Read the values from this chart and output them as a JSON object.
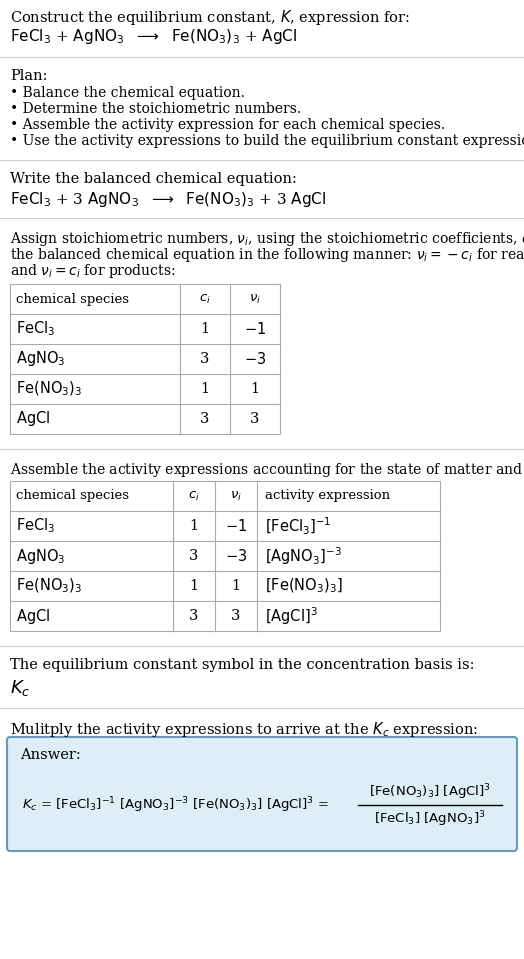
{
  "title_line1": "Construct the equilibrium constant, $K$, expression for:",
  "title_line2_plain": "FeCl",
  "plan_header": "Plan:",
  "plan_bullets": [
    "• Balance the chemical equation.",
    "• Determine the stoichiometric numbers.",
    "• Assemble the activity expression for each chemical species.",
    "• Use the activity expressions to build the equilibrium constant expression."
  ],
  "balanced_header": "Write the balanced chemical equation:",
  "stoich_para_lines": [
    "Assign stoichiometric numbers, $\\nu_i$, using the stoichiometric coefficients, $c_i$, from",
    "the balanced chemical equation in the following manner: $\\nu_i = -c_i$ for reactants",
    "and $\\nu_i = c_i$ for products:"
  ],
  "table1_headers": [
    "chemical species",
    "$c_i$",
    "$\\nu_i$"
  ],
  "table1_rows": [
    [
      "$\\mathrm{FeCl_3}$",
      "1",
      "$-1$"
    ],
    [
      "$\\mathrm{AgNO_3}$",
      "3",
      "$-3$"
    ],
    [
      "$\\mathrm{Fe(NO_3)_3}$",
      "1",
      "1"
    ],
    [
      "$\\mathrm{AgCl}$",
      "3",
      "3"
    ]
  ],
  "activity_header": "Assemble the activity expressions accounting for the state of matter and $\\nu_i$:",
  "table2_headers": [
    "chemical species",
    "$c_i$",
    "$\\nu_i$",
    "activity expression"
  ],
  "table2_rows": [
    [
      "$\\mathrm{FeCl_3}$",
      "1",
      "$-1$",
      "$[\\mathrm{FeCl_3}]^{-1}$"
    ],
    [
      "$\\mathrm{AgNO_3}$",
      "3",
      "$-3$",
      "$[\\mathrm{AgNO_3}]^{-3}$"
    ],
    [
      "$\\mathrm{Fe(NO_3)_3}$",
      "1",
      "1",
      "$[\\mathrm{Fe(NO_3)_3}]$"
    ],
    [
      "$\\mathrm{AgCl}$",
      "3",
      "3",
      "$[\\mathrm{AgCl}]^3$"
    ]
  ],
  "kc_symbol_header": "The equilibrium constant symbol in the concentration basis is:",
  "kc_symbol": "$K_c$",
  "multiply_header": "Mulitply the activity expressions to arrive at the $K_c$ expression:",
  "answer_label": "Answer:",
  "bg_color": "#ffffff",
  "table_border_color": "#aaaaaa",
  "answer_bg_color": "#ddeef6",
  "answer_border_color": "#6699bb",
  "text_color": "#000000",
  "separator_color": "#cccccc",
  "font_family": "DejaVu Serif"
}
